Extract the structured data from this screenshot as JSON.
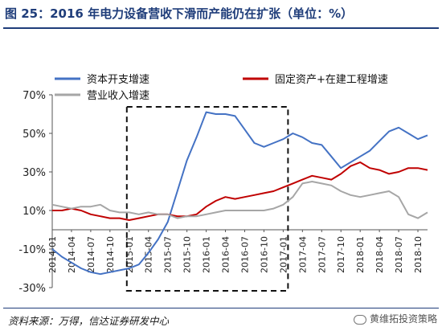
{
  "figure": {
    "title": "图 25：2016 年电力设备营收下滑而产能仍在扩张（单位：%）",
    "source": "资料来源：万得，信达证券研发中心",
    "watermark": "黄维拓投资策略"
  },
  "chart_data": {
    "type": "line",
    "title": "",
    "xlabel": "",
    "ylabel": "",
    "ylim": [
      -30,
      70
    ],
    "yticks": [
      -30,
      -10,
      10,
      30,
      50,
      70
    ],
    "ytick_labels": [
      "-30%",
      "-10%",
      "10%",
      "30%",
      "50%",
      "70%"
    ],
    "grid": false,
    "legend_position": "top",
    "x": [
      "2014-01",
      "2014-02",
      "2014-04",
      "2014-05",
      "2014-07",
      "2014-08",
      "2014-10",
      "2014-11",
      "2015-01",
      "2015-02",
      "2015-04",
      "2015-05",
      "2015-07",
      "2015-08",
      "2015-10",
      "2015-11",
      "2016-01",
      "2016-02",
      "2016-04",
      "2016-05",
      "2016-07",
      "2016-08",
      "2016-10",
      "2016-11",
      "2017-01",
      "2017-02",
      "2017-04",
      "2017-05",
      "2017-07",
      "2017-08",
      "2017-10",
      "2017-11",
      "2018-01",
      "2018-02",
      "2018-04",
      "2018-05",
      "2018-07",
      "2018-08",
      "2018-10",
      "2018-11"
    ],
    "x_tick_labels": [
      "2014-01",
      "2014-04",
      "2014-07",
      "2014-10",
      "2015-01",
      "2015-04",
      "2015-07",
      "2015-10",
      "2016-01",
      "2016-04",
      "2016-07",
      "2016-10",
      "2017-01",
      "2017-04",
      "2017-07",
      "2017-10",
      "2018-01",
      "2018-04",
      "2018-07",
      "2018-10"
    ],
    "series": [
      {
        "name": "资本开支增速",
        "color": "#4472c4",
        "values": [
          -10,
          -14,
          -17,
          -20,
          -22,
          -23,
          -22,
          -21,
          -20,
          -18,
          -12,
          -5,
          4,
          20,
          36,
          48,
          61,
          60,
          60,
          59,
          52,
          45,
          43,
          45,
          47,
          50,
          48,
          45,
          44,
          38,
          32,
          35,
          38,
          41,
          46,
          51,
          53,
          50,
          47,
          49
        ]
      },
      {
        "name": "固定资产+在建工程增速",
        "color": "#c00000",
        "values": [
          10,
          10,
          11,
          10,
          8,
          7,
          6,
          6,
          5,
          6,
          7,
          8,
          8,
          7,
          7,
          8,
          12,
          15,
          17,
          16,
          17,
          18,
          19,
          20,
          22,
          24,
          26,
          28,
          27,
          26,
          29,
          33,
          35,
          32,
          31,
          29,
          30,
          32,
          32,
          31
        ]
      },
      {
        "name": "营业收入增速",
        "color": "#a6a6a6",
        "values": [
          13,
          12,
          11,
          12,
          12,
          13,
          10,
          9,
          9,
          8,
          9,
          8,
          8,
          6,
          7,
          7,
          8,
          9,
          10,
          10,
          10,
          10,
          10,
          11,
          13,
          17,
          24,
          25,
          24,
          23,
          20,
          18,
          17,
          18,
          19,
          20,
          17,
          8,
          6,
          9
        ]
      }
    ],
    "annotation": "dashed box highlighting 2015-01 to 2017-01"
  }
}
